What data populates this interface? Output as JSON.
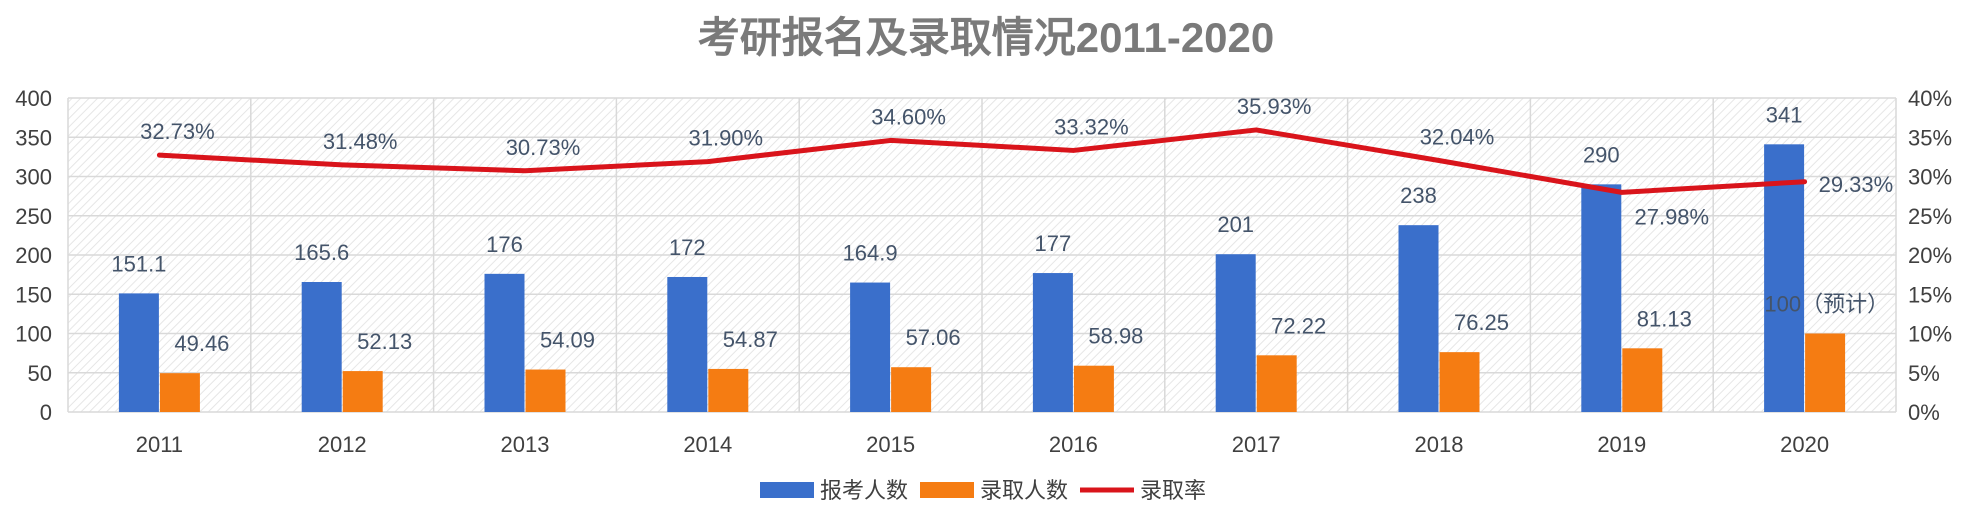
{
  "chart_data": {
    "type": "bar",
    "title": "考研报名及录取情况2011-2020",
    "categories": [
      "2011",
      "2012",
      "2013",
      "2014",
      "2015",
      "2016",
      "2017",
      "2018",
      "2019",
      "2020"
    ],
    "series": [
      {
        "name": "报考人数",
        "type": "bar",
        "axis": "left",
        "color": "#3a6fcb",
        "values": [
          151.1,
          165.6,
          176,
          172,
          164.9,
          177,
          201,
          238,
          290,
          341
        ],
        "labels": [
          "151.1",
          "165.6",
          "176",
          "172",
          "164.9",
          "177",
          "201",
          "238",
          "290",
          "341"
        ]
      },
      {
        "name": "录取人数",
        "type": "bar",
        "axis": "left",
        "color": "#f57c12",
        "values": [
          49.46,
          52.13,
          54.09,
          54.87,
          57.06,
          58.98,
          72.22,
          76.25,
          81.13,
          100
        ],
        "labels": [
          "49.46",
          "52.13",
          "54.09",
          "54.87",
          "57.06",
          "58.98",
          "72.22",
          "76.25",
          "81.13",
          "100（预计）"
        ]
      },
      {
        "name": "录取率",
        "type": "line",
        "axis": "right",
        "color": "#d9141b",
        "values": [
          32.73,
          31.48,
          30.73,
          31.9,
          34.6,
          33.32,
          35.93,
          32.04,
          27.98,
          29.33
        ],
        "labels": [
          "32.73%",
          "31.48%",
          "30.73%",
          "31.90%",
          "34.60%",
          "33.32%",
          "35.93%",
          "32.04%",
          "27.98%",
          "29.33%"
        ]
      }
    ],
    "y_left": {
      "min": 0,
      "max": 400,
      "ticks": [
        "0",
        "50",
        "100",
        "150",
        "200",
        "250",
        "300",
        "350",
        "400"
      ]
    },
    "y_right": {
      "min": 0,
      "max": 40,
      "ticks": [
        "0%",
        "5%",
        "10%",
        "15%",
        "20%",
        "25%",
        "30%",
        "35%",
        "40%"
      ]
    },
    "grid": true,
    "legend_position": "bottom"
  }
}
